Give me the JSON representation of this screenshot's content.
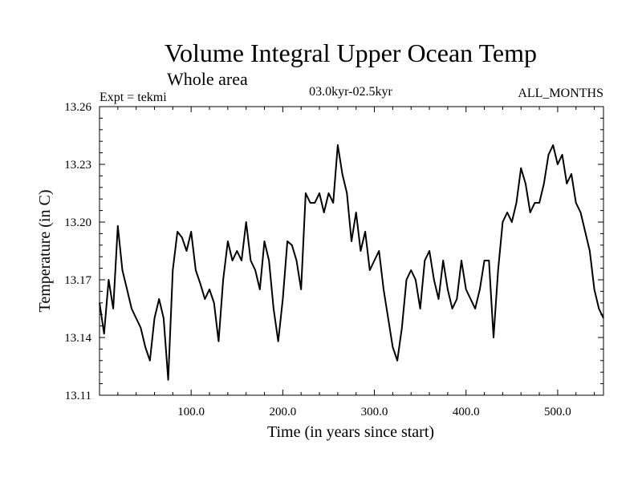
{
  "chart_data": {
    "type": "line",
    "title": "Volume Integral Upper Ocean Temp",
    "subtitle": "Whole area",
    "left_annotation": "Expt = tekmi",
    "center_annotation": "03.0kyr-02.5kyr",
    "right_annotation": "ALL_MONTHS",
    "xlabel": "Time (in years since start)",
    "ylabel": "Temperature (in C)",
    "xlim": [
      0,
      550
    ],
    "ylim": [
      13.11,
      13.26
    ],
    "x_ticks": [
      100,
      200,
      300,
      400,
      500
    ],
    "x_tick_labels": [
      "100.0",
      "200.0",
      "300.0",
      "400.0",
      "500.0"
    ],
    "y_ticks": [
      13.11,
      13.14,
      13.17,
      13.2,
      13.23,
      13.26
    ],
    "y_tick_labels": [
      "13.11",
      "13.14",
      "13.17",
      "13.20",
      "13.23",
      "13.26"
    ],
    "grid": false,
    "series": [
      {
        "name": "Temperature",
        "color": "#000000",
        "x": [
          0,
          5,
          10,
          15,
          20,
          25,
          30,
          35,
          40,
          45,
          50,
          55,
          60,
          65,
          70,
          75,
          80,
          85,
          90,
          95,
          100,
          105,
          110,
          115,
          120,
          125,
          130,
          135,
          140,
          145,
          150,
          155,
          160,
          165,
          170,
          175,
          180,
          185,
          190,
          195,
          200,
          205,
          210,
          215,
          220,
          225,
          230,
          235,
          240,
          245,
          250,
          255,
          260,
          265,
          270,
          275,
          280,
          285,
          290,
          295,
          300,
          305,
          310,
          315,
          320,
          325,
          330,
          335,
          340,
          345,
          350,
          355,
          360,
          365,
          370,
          375,
          380,
          385,
          390,
          395,
          400,
          405,
          410,
          415,
          420,
          425,
          430,
          435,
          440,
          445,
          450,
          455,
          460,
          465,
          470,
          475,
          480,
          485,
          490,
          495,
          500,
          505,
          510,
          515,
          520,
          525,
          530,
          535,
          540,
          545,
          550
        ],
        "values": [
          13.158,
          13.142,
          13.17,
          13.155,
          13.198,
          13.175,
          13.165,
          13.155,
          13.15,
          13.145,
          13.135,
          13.128,
          13.15,
          13.16,
          13.15,
          13.118,
          13.175,
          13.195,
          13.192,
          13.185,
          13.195,
          13.175,
          13.168,
          13.16,
          13.165,
          13.158,
          13.138,
          13.17,
          13.19,
          13.18,
          13.185,
          13.18,
          13.2,
          13.18,
          13.175,
          13.165,
          13.19,
          13.18,
          13.155,
          13.138,
          13.16,
          13.19,
          13.188,
          13.18,
          13.165,
          13.215,
          13.21,
          13.21,
          13.215,
          13.205,
          13.215,
          13.21,
          13.24,
          13.225,
          13.215,
          13.19,
          13.205,
          13.185,
          13.195,
          13.175,
          13.18,
          13.185,
          13.165,
          13.15,
          13.135,
          13.128,
          13.145,
          13.17,
          13.175,
          13.17,
          13.155,
          13.18,
          13.185,
          13.17,
          13.16,
          13.18,
          13.165,
          13.155,
          13.16,
          13.18,
          13.165,
          13.16,
          13.155,
          13.165,
          13.18,
          13.18,
          13.14,
          13.175,
          13.2,
          13.205,
          13.2,
          13.21,
          13.228,
          13.22,
          13.205,
          13.21,
          13.21,
          13.22,
          13.235,
          13.24,
          13.23,
          13.235,
          13.22,
          13.225,
          13.21,
          13.205,
          13.195,
          13.185,
          13.165,
          13.155,
          13.15
        ]
      }
    ]
  }
}
